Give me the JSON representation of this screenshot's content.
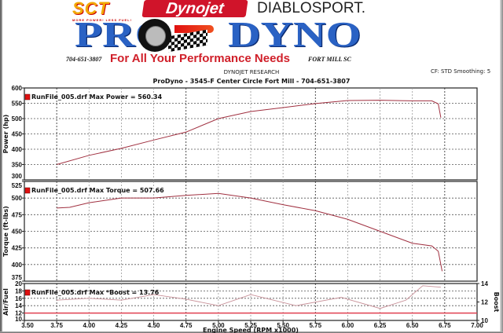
{
  "header": {
    "logo_sct": "SCT",
    "logo_sct_tagline": "MORE POWER! LESS FUEL!",
    "logo_dynojet": "Dynojet",
    "logo_diablosport": "DIABLOSPORT.",
    "logo_pro": "PRO",
    "logo_dyno": "DYNO",
    "phone": "704-651-3807",
    "slogan": "For All Your Performance Needs",
    "city": "FORT MILL SC",
    "research": "DYNOJET RESEARCH",
    "settings": "CF: STD  Smoothing: 5",
    "title": "ProDyno - 3545-F Center Circle Fort Mill  - 704-651-3807"
  },
  "colors": {
    "curve": "#a03040",
    "marker": "#e01010",
    "afr": "#e04050",
    "boost": "#c89098"
  },
  "chart_data": [
    {
      "type": "line",
      "ylabel": "Power (hp)",
      "ylim": [
        300,
        600
      ],
      "yticks": [
        "300",
        "350",
        "400",
        "450",
        "500",
        "550",
        "600"
      ],
      "legend": "RunFile_005.drf Max Power = 560.34",
      "grid": true,
      "x": [
        3.75,
        4.0,
        4.25,
        4.5,
        4.75,
        5.0,
        5.25,
        5.5,
        5.75,
        6.0,
        6.25,
        6.5,
        6.65,
        6.7,
        6.72
      ],
      "values": [
        350,
        380,
        403,
        430,
        456,
        500,
        523,
        536,
        549,
        559,
        560,
        558,
        558,
        548,
        503
      ]
    },
    {
      "type": "line",
      "ylabel": "Torque (ft-lbs)",
      "ylim": [
        375,
        525
      ],
      "yticks": [
        "375",
        "400",
        "425",
        "450",
        "475",
        "500",
        "525"
      ],
      "legend": "RunFile_005.drf Max Torque = 507.66",
      "grid": true,
      "x": [
        3.75,
        3.85,
        4.0,
        4.25,
        4.5,
        4.75,
        5.0,
        5.25,
        5.5,
        5.75,
        6.0,
        6.25,
        6.5,
        6.65,
        6.7,
        6.72,
        6.73
      ],
      "values": [
        485,
        486,
        493,
        500,
        500,
        504,
        507,
        500,
        490,
        481,
        468,
        450,
        432,
        428,
        420,
        400,
        390
      ]
    },
    {
      "type": "line",
      "ylabel": "Air/Fuel",
      "ylabel_right": "Boost",
      "ylim": [
        10,
        20
      ],
      "ylim_right": [
        10,
        14
      ],
      "yticks": [
        "10",
        "12",
        "14",
        "16",
        "18",
        "20"
      ],
      "yticks_right": [
        "10",
        "12",
        "14"
      ],
      "legend": "RunFile_005.drf Max *Boost = 13.76",
      "grid": true,
      "series": [
        {
          "axis": "left",
          "x": [
            3.5,
            3.75,
            4.0,
            4.5,
            5.0,
            5.5,
            6.0,
            6.5,
            7.0
          ],
          "values": [
            12,
            12,
            12,
            12,
            12,
            12,
            12,
            12,
            12
          ]
        },
        {
          "axis": "right",
          "x": [
            3.75,
            4.0,
            4.25,
            4.5,
            4.75,
            5.0,
            5.25,
            5.6,
            5.95,
            6.25,
            6.45,
            6.58,
            6.72
          ],
          "values": [
            12.2,
            12.4,
            12.2,
            12.8,
            12.3,
            11.6,
            12.8,
            11.6,
            12.5,
            11.3,
            12.2,
            13.76,
            13.6
          ]
        }
      ]
    }
  ],
  "xaxis": {
    "label": "Engine Speed (RPM x1000)",
    "xlim": [
      3.5,
      7.0
    ],
    "ticks": [
      "3.50",
      "3.75",
      "4.00",
      "4.25",
      "4.50",
      "4.75",
      "5.00",
      "5.25",
      "5.50",
      "5.75",
      "6.00",
      "6.25",
      "6.50",
      "6.75",
      "7.00"
    ]
  }
}
